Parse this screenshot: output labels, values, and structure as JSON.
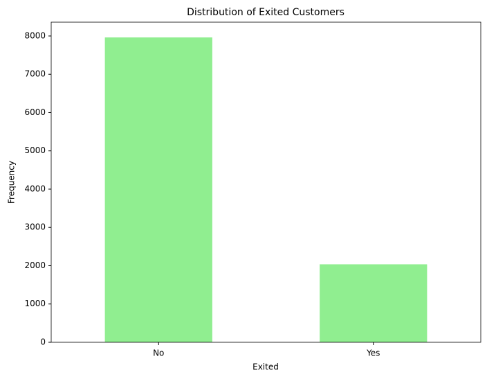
{
  "chart_data": {
    "type": "bar",
    "title": "Distribution of Exited Customers",
    "xlabel": "Exited",
    "ylabel": "Frequency",
    "categories": [
      "No",
      "Yes"
    ],
    "values": [
      7963,
      2037
    ],
    "color": "#90ee90",
    "ylim": [
      0,
      8361
    ],
    "yticks": [
      0,
      1000,
      2000,
      3000,
      4000,
      5000,
      6000,
      7000,
      8000
    ],
    "grid": false
  }
}
